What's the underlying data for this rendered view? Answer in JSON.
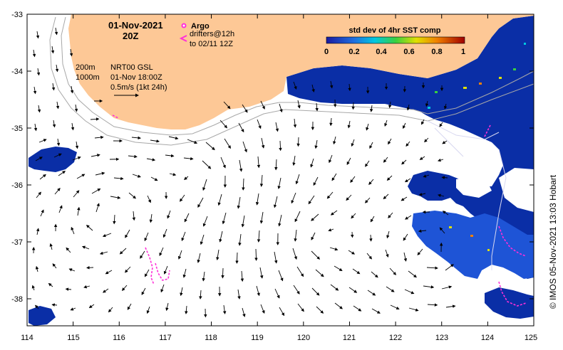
{
  "map": {
    "date": "01-Nov-2021",
    "time": "20Z",
    "argo_label": "Argo",
    "drifters_line1": "drifters@12h",
    "drifters_line2": "to 02/11 12Z",
    "contour_200": "200m",
    "contour_1000": "1000m",
    "product_line1": "NRT00 GSL",
    "product_line2": "01-Nov 18:00Z",
    "scale_label": "0.5m/s (1kt 24h)",
    "colorbar_title": "std dev of 4hr SST comp",
    "colorbar_ticks": [
      "0",
      "0.2",
      "0.4",
      "0.6",
      "0.8",
      "1"
    ],
    "credit": "© IMOS 05-Nov-2021 13:03 Hobart",
    "lon_ticks": [
      "114",
      "115",
      "116",
      "117",
      "118",
      "119",
      "120",
      "121",
      "122",
      "123",
      "124",
      "125"
    ],
    "lat_ticks": [
      "-33",
      "-34",
      "-35",
      "-36",
      "-37",
      "-38"
    ],
    "colors": {
      "land": "#fdc896",
      "sst_dark": "#0a2ea6",
      "sst_mid": "#1e54d6",
      "drifter": "#ff2fd8",
      "contour": "#a8a8a8"
    },
    "lon_range": [
      114,
      125
    ],
    "lat_range": [
      -38.5,
      -33
    ]
  }
}
